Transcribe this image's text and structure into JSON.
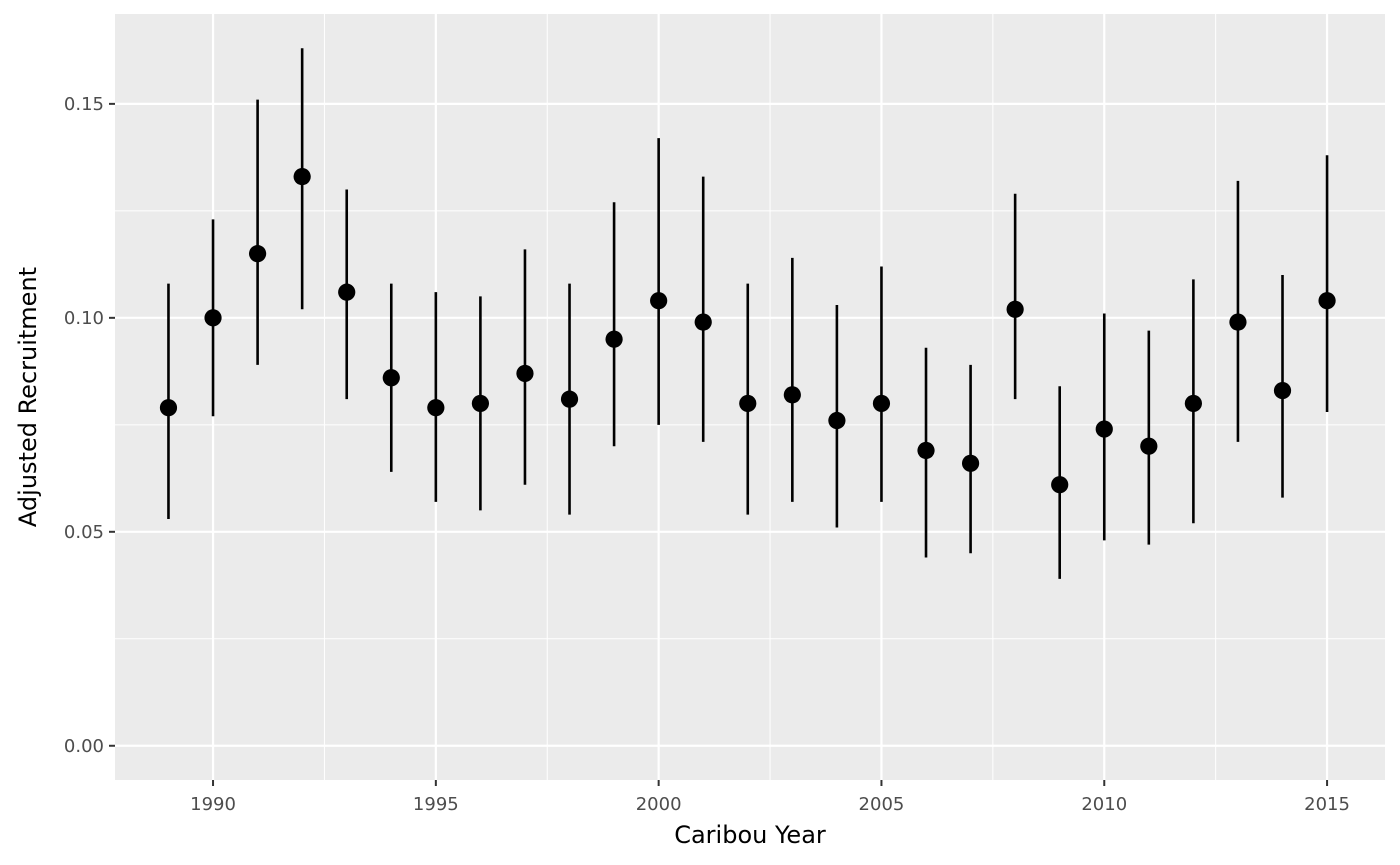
{
  "chart_data": {
    "type": "scatter",
    "title": "",
    "xlabel": "Caribou Year",
    "ylabel": "Adjusted Recruitment",
    "xlim": [
      1987.8,
      2016.3
    ],
    "ylim": [
      -0.008,
      0.171
    ],
    "x_ticks": [
      1990,
      1995,
      2000,
      2005,
      2010,
      2015
    ],
    "x_tick_labels": [
      "1990",
      "1995",
      "2000",
      "2005",
      "2010",
      "2015"
    ],
    "y_ticks": [
      0.0,
      0.05,
      0.1,
      0.15
    ],
    "y_tick_labels": [
      "0.00",
      "0.05",
      "0.10",
      "0.15"
    ],
    "grid": true,
    "legend": "none",
    "colors": {
      "panel_background": "#ebebeb",
      "grid_line": "#ffffff",
      "point": "#000000",
      "error_bar": "#000000"
    },
    "series": [
      {
        "x": [
          1989,
          1990,
          1991,
          1992,
          1993,
          1994,
          1995,
          1996,
          1997,
          1998,
          1999,
          2000,
          2001,
          2002,
          2003,
          2004,
          2005,
          2006,
          2007,
          2008,
          2009,
          2010,
          2011,
          2012,
          2013,
          2014,
          2015
        ],
        "y": [
          0.079,
          0.1,
          0.115,
          0.133,
          0.106,
          0.086,
          0.079,
          0.08,
          0.087,
          0.081,
          0.095,
          0.104,
          0.099,
          0.08,
          0.082,
          0.076,
          0.08,
          0.069,
          0.066,
          0.102,
          0.061,
          0.074,
          0.07,
          0.08,
          0.099,
          0.083,
          0.104
        ],
        "lower": [
          0.053,
          0.077,
          0.089,
          0.102,
          0.081,
          0.064,
          0.057,
          0.055,
          0.061,
          0.054,
          0.07,
          0.075,
          0.071,
          0.054,
          0.057,
          0.051,
          0.057,
          0.044,
          0.045,
          0.081,
          0.039,
          0.048,
          0.047,
          0.052,
          0.071,
          0.058,
          0.078
        ],
        "upper": [
          0.108,
          0.123,
          0.151,
          0.163,
          0.13,
          0.108,
          0.106,
          0.105,
          0.116,
          0.108,
          0.127,
          0.142,
          0.133,
          0.108,
          0.114,
          0.103,
          0.112,
          0.093,
          0.089,
          0.129,
          0.084,
          0.101,
          0.097,
          0.109,
          0.132,
          0.11,
          0.138
        ]
      }
    ]
  }
}
